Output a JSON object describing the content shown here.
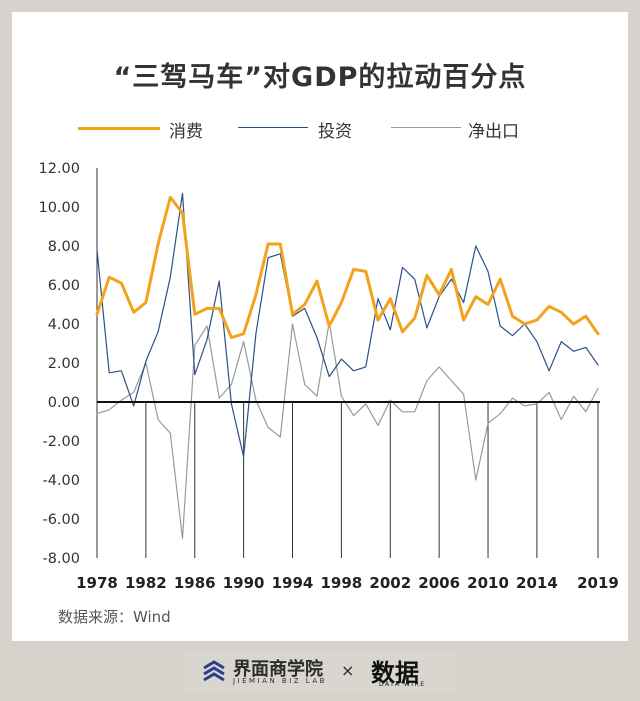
{
  "title": "“三驾马车”对GDP的拉动百分点",
  "source": "数据来源：Wind",
  "footer": {
    "brand1": "界面商学院",
    "brand1_sub": "JIEMIAN BIZ LAB",
    "separator": "×",
    "brand2": "数据",
    "brand2_sub": "DATA WIRE"
  },
  "chart_data": {
    "type": "line",
    "title": "“三驾马车”对GDP的拉动百分点",
    "xlabel": "",
    "ylabel": "",
    "x": [
      1978,
      1979,
      1980,
      1981,
      1982,
      1983,
      1984,
      1985,
      1986,
      1987,
      1988,
      1989,
      1990,
      1991,
      1992,
      1993,
      1994,
      1995,
      1996,
      1997,
      1998,
      1999,
      2000,
      2001,
      2002,
      2003,
      2004,
      2005,
      2006,
      2007,
      2008,
      2009,
      2010,
      2011,
      2012,
      2013,
      2014,
      2015,
      2016,
      2017,
      2018,
      2019
    ],
    "x_tick_labels": [
      "1978",
      "1982",
      "1986",
      "1990",
      "1994",
      "1998",
      "2002",
      "2006",
      "2010",
      "2014",
      "2019"
    ],
    "y_tick_labels": [
      "12.00",
      "10.00",
      "8.00",
      "6.00",
      "4.00",
      "2.00",
      "0.00",
      "-2.00",
      "-4.00",
      "-6.00",
      "-8.00"
    ],
    "ylim": [
      -8,
      12
    ],
    "grid": false,
    "legend": "top",
    "series": [
      {
        "name": "消费",
        "color": "#f2a21b",
        "width": 3,
        "values": [
          4.5,
          6.4,
          6.1,
          4.6,
          5.1,
          8.1,
          10.5,
          9.7,
          4.5,
          4.8,
          4.8,
          3.3,
          3.5,
          5.5,
          8.1,
          8.1,
          4.5,
          5.0,
          6.2,
          3.9,
          5.1,
          6.8,
          6.7,
          4.2,
          5.3,
          3.6,
          4.3,
          6.5,
          5.5,
          6.8,
          4.2,
          5.4,
          5.0,
          6.3,
          4.4,
          4.0,
          4.2,
          4.9,
          4.6,
          4.0,
          4.4,
          3.5
        ]
      },
      {
        "name": "投资",
        "color": "#2e4f8a",
        "width": 1.2,
        "values": [
          7.8,
          1.5,
          1.6,
          -0.2,
          2.1,
          3.6,
          6.4,
          10.7,
          1.4,
          3.2,
          6.2,
          -0.1,
          -2.8,
          3.5,
          7.4,
          7.6,
          4.4,
          4.8,
          3.3,
          1.3,
          2.2,
          1.6,
          1.8,
          5.3,
          3.7,
          6.9,
          6.3,
          3.8,
          5.4,
          6.3,
          5.1,
          8.0,
          6.7,
          3.9,
          3.4,
          4.0,
          3.1,
          1.6,
          3.1,
          2.6,
          2.8,
          1.9
        ]
      },
      {
        "name": "净出口",
        "color": "#9a9a9a",
        "width": 1.2,
        "values": [
          -0.6,
          -0.4,
          0.1,
          0.5,
          2.0,
          -0.9,
          -1.6,
          -7.0,
          2.9,
          3.9,
          0.2,
          0.9,
          3.1,
          0.1,
          -1.3,
          -1.8,
          4.0,
          0.9,
          0.3,
          4.1,
          0.3,
          -0.7,
          -0.1,
          -1.2,
          0.1,
          -0.5,
          -0.5,
          1.1,
          1.8,
          1.1,
          0.4,
          -4.0,
          -1.1,
          -0.6,
          0.2,
          -0.2,
          -0.1,
          0.5,
          -0.9,
          0.3,
          -0.5,
          0.7
        ]
      }
    ]
  }
}
